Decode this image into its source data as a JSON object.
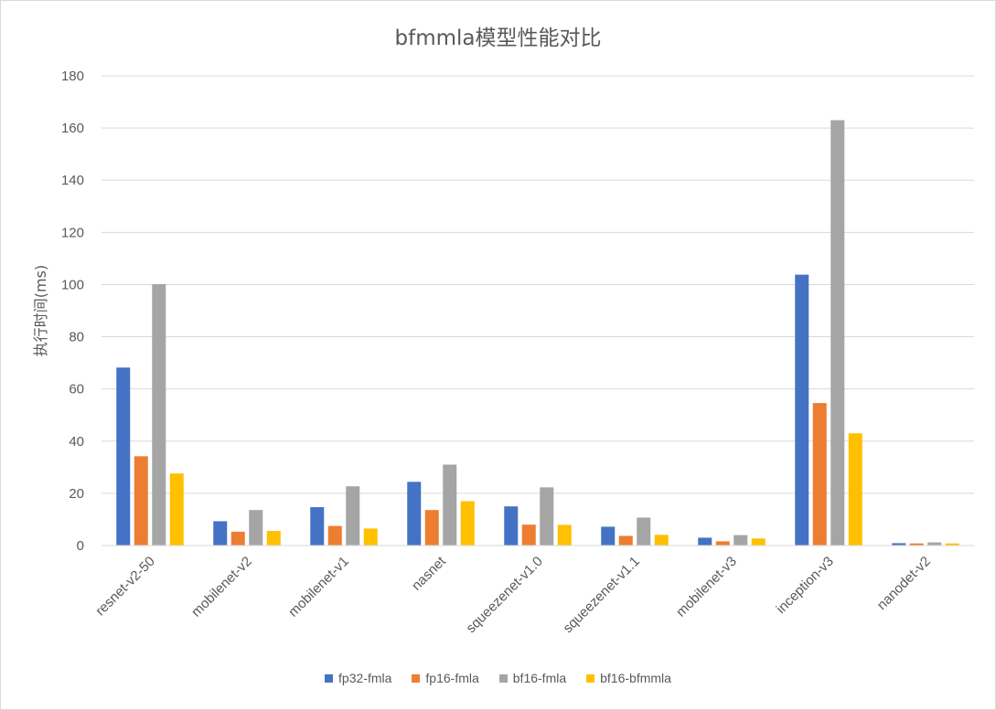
{
  "chart_data": {
    "type": "bar",
    "title": "bfmmla模型性能对比",
    "ylabel": "执行时间(ms)",
    "xlabel": "",
    "ylim": [
      0,
      180
    ],
    "yticks": [
      0,
      20,
      40,
      60,
      80,
      100,
      120,
      140,
      160,
      180
    ],
    "grid": true,
    "legend_position": "bottom",
    "categories": [
      "resnet-v2-50",
      "mobilenet-v2",
      "mobilenet-v1",
      "nasnet",
      "squeezenet-v1.0",
      "squeezenet-v1.1",
      "mobilenet-v3",
      "inception-v3",
      "nanodet-v2"
    ],
    "series": [
      {
        "name": "fp32-fmla",
        "color": "#4472c4",
        "values": [
          68.2,
          9.3,
          14.7,
          24.4,
          15.0,
          7.2,
          3.0,
          103.8,
          0.9
        ]
      },
      {
        "name": "fp16-fmla",
        "color": "#ed7d31",
        "values": [
          34.2,
          5.3,
          7.5,
          13.6,
          8.0,
          3.7,
          1.6,
          54.6,
          0.8
        ]
      },
      {
        "name": "bf16-fmla",
        "color": "#a5a5a5",
        "values": [
          100.2,
          13.6,
          22.7,
          31.0,
          22.3,
          10.7,
          4.0,
          163.0,
          1.2
        ]
      },
      {
        "name": "bf16-bfmmla",
        "color": "#ffc000",
        "values": [
          27.6,
          5.6,
          6.5,
          17.0,
          7.9,
          4.1,
          2.7,
          43.0,
          0.8
        ]
      }
    ]
  }
}
